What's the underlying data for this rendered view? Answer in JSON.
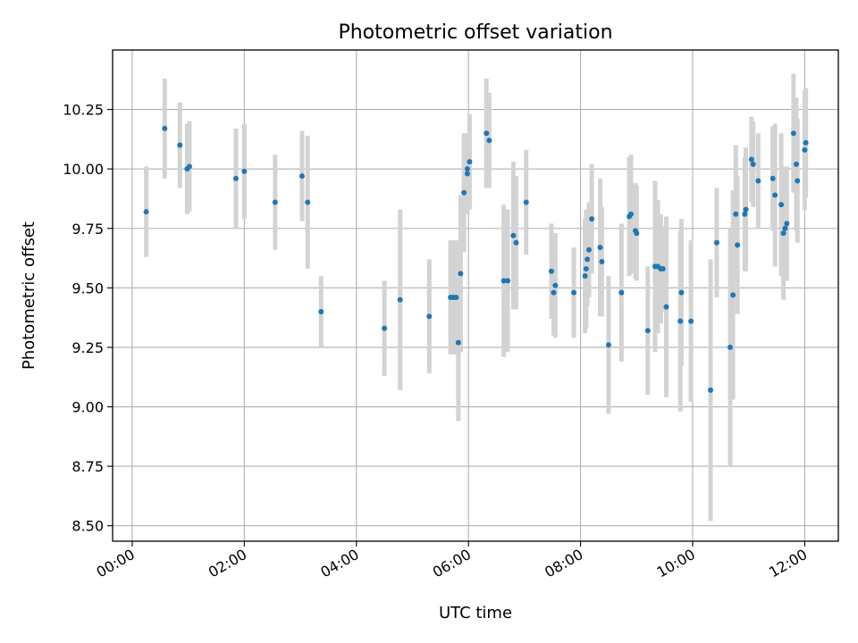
{
  "chart_data": {
    "type": "scatter",
    "title": "Photometric offset variation",
    "xlabel": "UTC time",
    "ylabel": "Photometric offset",
    "xlim": [
      -0.35,
      12.6
    ],
    "ylim": [
      8.435,
      10.5
    ],
    "grid": true,
    "x_ticks": [
      0,
      2,
      4,
      6,
      8,
      10,
      12
    ],
    "x_tick_labels": [
      "00:00",
      "02:00",
      "04:00",
      "06:00",
      "08:00",
      "10:00",
      "12:00"
    ],
    "y_ticks": [
      8.5,
      8.75,
      9.0,
      9.25,
      9.5,
      9.75,
      10.0,
      10.25
    ],
    "y_tick_labels": [
      "8.50",
      "8.75",
      "9.00",
      "9.25",
      "9.50",
      "9.75",
      "10.00",
      "10.25"
    ],
    "marker_color": "#1f77b4",
    "errorbar_color": "#d3d3d3",
    "series": [
      {
        "name": "offset",
        "x": [
          0.25,
          0.58,
          0.85,
          0.98,
          1.02,
          1.85,
          2.0,
          2.55,
          3.03,
          3.13,
          3.37,
          4.5,
          4.78,
          5.3,
          5.68,
          5.73,
          5.78,
          5.82,
          5.86,
          5.92,
          5.98,
          5.98,
          6.02,
          6.32,
          6.37,
          6.63,
          6.7,
          6.8,
          6.85,
          7.03,
          7.48,
          7.52,
          7.55,
          7.88,
          8.08,
          8.1,
          8.12,
          8.15,
          8.2,
          8.35,
          8.38,
          8.5,
          8.73,
          8.87,
          8.9,
          8.98,
          9.0,
          9.2,
          9.33,
          9.38,
          9.43,
          9.47,
          9.53,
          9.78,
          9.8,
          9.97,
          10.32,
          10.43,
          10.67,
          10.72,
          10.77,
          10.8,
          10.93,
          10.95,
          11.05,
          11.08,
          11.17,
          11.43,
          11.47,
          11.58,
          11.62,
          11.65,
          11.68,
          11.8,
          11.85,
          11.87,
          12.0,
          12.02
        ],
        "y": [
          9.82,
          10.17,
          10.1,
          10.0,
          10.01,
          9.96,
          9.99,
          9.86,
          9.97,
          9.86,
          9.4,
          9.33,
          9.45,
          9.38,
          9.46,
          9.46,
          9.46,
          9.27,
          9.56,
          9.9,
          9.98,
          10.0,
          10.03,
          10.15,
          10.12,
          9.53,
          9.53,
          9.72,
          9.69,
          9.86,
          9.57,
          9.48,
          9.51,
          9.48,
          9.55,
          9.58,
          9.62,
          9.66,
          9.79,
          9.67,
          9.61,
          9.26,
          9.48,
          9.8,
          9.81,
          9.74,
          9.73,
          9.32,
          9.59,
          9.59,
          9.58,
          9.58,
          9.42,
          9.36,
          9.48,
          9.36,
          9.07,
          9.69,
          9.25,
          9.47,
          9.81,
          9.68,
          9.81,
          9.83,
          10.04,
          10.02,
          9.95,
          9.96,
          9.89,
          9.85,
          9.73,
          9.75,
          9.77,
          10.15,
          10.02,
          9.95,
          10.08,
          10.11
        ],
        "yerr": [
          0.19,
          0.21,
          0.18,
          0.19,
          0.19,
          0.21,
          0.2,
          0.2,
          0.19,
          0.28,
          0.15,
          0.2,
          0.38,
          0.24,
          0.24,
          0.24,
          0.24,
          0.33,
          0.33,
          0.25,
          0.17,
          0.15,
          0.2,
          0.23,
          0.2,
          0.32,
          0.3,
          0.31,
          0.28,
          0.22,
          0.2,
          0.18,
          0.22,
          0.19,
          0.24,
          0.25,
          0.2,
          0.2,
          0.23,
          0.29,
          0.23,
          0.29,
          0.29,
          0.25,
          0.25,
          0.2,
          0.2,
          0.27,
          0.36,
          0.28,
          0.23,
          0.18,
          0.38,
          0.38,
          0.31,
          0.34,
          0.55,
          0.23,
          0.5,
          0.44,
          0.29,
          0.29,
          0.24,
          0.26,
          0.18,
          0.18,
          0.2,
          0.22,
          0.3,
          0.3,
          0.28,
          0.22,
          0.24,
          0.25,
          0.28,
          0.26,
          0.25,
          0.23
        ]
      }
    ]
  }
}
